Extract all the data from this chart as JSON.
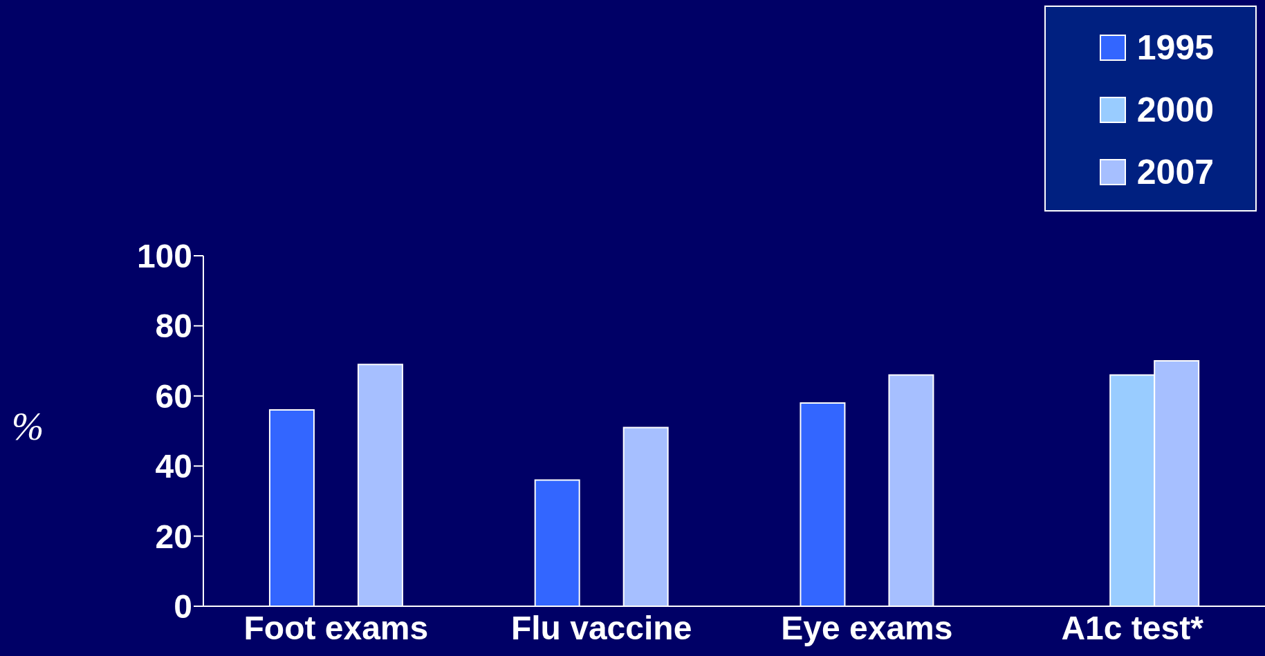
{
  "chart_data": {
    "type": "bar",
    "ylabel": "%",
    "categories": [
      "Foot exams",
      "Flu vaccine",
      "Eye exams",
      "A1c test*"
    ],
    "series": [
      {
        "name": "1995",
        "color": "#3366ff",
        "values": [
          56,
          36,
          58,
          null
        ]
      },
      {
        "name": "2000",
        "color": "#99ccff",
        "values": [
          null,
          null,
          null,
          66
        ]
      },
      {
        "name": "2007",
        "color": "#a6bfff",
        "values": [
          69,
          51,
          66,
          70
        ]
      }
    ],
    "ylim": [
      0,
      100
    ],
    "yticks": [
      0,
      20,
      40,
      60,
      80,
      100
    ],
    "grid": false,
    "legend": "top right"
  }
}
